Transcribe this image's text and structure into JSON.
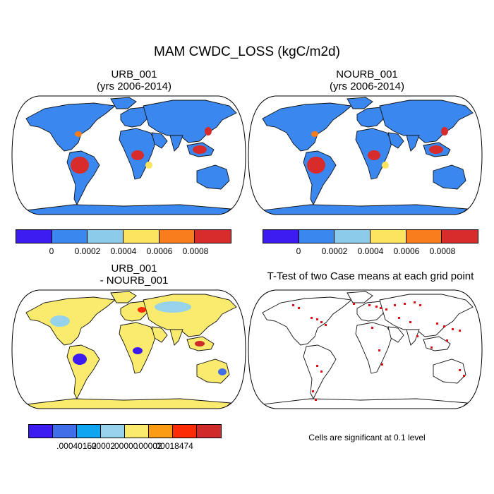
{
  "title": "MAM CWDC_LOSS (kgC/m2d)",
  "panels": {
    "urb": {
      "title_line1": "URB_001",
      "title_line2": "(yrs 2006-2014)"
    },
    "nourb": {
      "title_line1": "NOURB_001",
      "title_line2": "(yrs 2006-2014)"
    },
    "diff": {
      "title_line1": "URB_001",
      "title_line2": "- NOURB_001"
    },
    "ttest": {
      "title": "T-Test of two Case means at each grid point"
    }
  },
  "colorbars": {
    "main": {
      "colors": [
        "#3c1cf0",
        "#3a87f0",
        "#8ccbea",
        "#fce460",
        "#f97d1c",
        "#d82b2b"
      ],
      "labels": [
        "0",
        "0.0002",
        "0.0004",
        "0.0006",
        "0.0008"
      ]
    },
    "diff": {
      "colors": [
        "#3c1cf0",
        "#3f6ee8",
        "#10a5f0",
        "#96d2ea",
        "#faeb6e",
        "#fb9c14",
        "#fb2c06",
        "#d02a2a"
      ],
      "labels": [
        ".00040152",
        "-.00002",
        ".00000",
        ".00002",
        ".00018474"
      ]
    }
  },
  "map_colors": {
    "ocean": "#ffffff",
    "land_main": "#3a87f0",
    "tropical_high": "#d82b2b",
    "diff_land": "#faeb6e",
    "significant": "#e01010"
  },
  "note": "Cells are significant at 0.1 level"
}
